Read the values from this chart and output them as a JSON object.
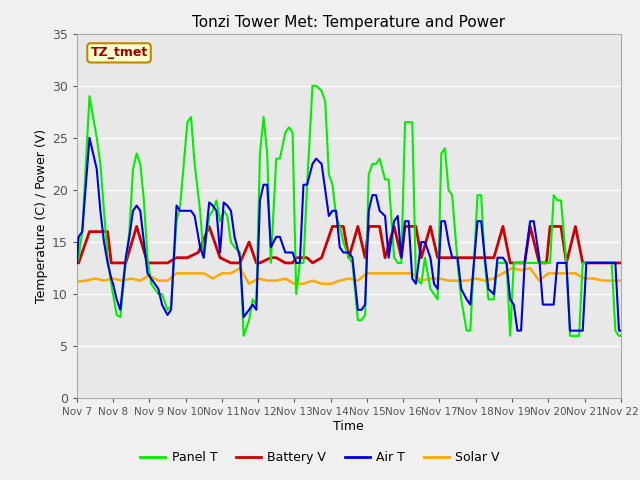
{
  "title": "Tonzi Tower Met: Temperature and Power",
  "xlabel": "Time",
  "ylabel": "Temperature (C) / Power (V)",
  "ylim": [
    0,
    35
  ],
  "yticks": [
    0,
    5,
    10,
    15,
    20,
    25,
    30,
    35
  ],
  "xtick_labels": [
    "Nov 7",
    "Nov 8",
    "Nov 9",
    "Nov 10",
    "Nov 11",
    "Nov 12",
    "Nov 13",
    "Nov 14",
    "Nov 15",
    "Nov 16",
    "Nov 17",
    "Nov 18",
    "Nov 19",
    "Nov 20",
    "Nov 21",
    "Nov 22"
  ],
  "label_box_text": "TZ_tmet",
  "legend_labels": [
    "Panel T",
    "Battery V",
    "Air T",
    "Solar V"
  ],
  "line_colors": [
    "#00ee00",
    "#cc0000",
    "#0000dd",
    "#ffaa00"
  ],
  "bg_color": "#e8e8e8",
  "fig_color": "#f0f0f0",
  "panel_t_x": [
    0.0,
    0.05,
    0.15,
    0.35,
    0.55,
    0.65,
    0.75,
    0.85,
    0.95,
    1.0,
    1.1,
    1.2,
    1.35,
    1.45,
    1.55,
    1.65,
    1.75,
    1.85,
    1.95,
    2.05,
    2.15,
    2.25,
    2.35,
    2.5,
    2.6,
    2.75,
    2.85,
    2.95,
    3.05,
    3.15,
    3.25,
    3.4,
    3.5,
    3.65,
    3.75,
    3.85,
    3.95,
    4.05,
    4.15,
    4.25,
    4.35,
    4.5,
    4.6,
    4.75,
    4.85,
    4.95,
    5.05,
    5.15,
    5.25,
    5.35,
    5.5,
    5.6,
    5.75,
    5.85,
    5.95,
    6.05,
    6.15,
    6.25,
    6.35,
    6.5,
    6.6,
    6.75,
    6.85,
    6.95,
    7.05,
    7.15,
    7.25,
    7.35,
    7.5,
    7.6,
    7.75,
    7.85,
    7.95,
    8.05,
    8.15,
    8.25,
    8.35,
    8.5,
    8.6,
    8.75,
    8.85,
    8.95,
    9.05,
    9.15,
    9.25,
    9.35,
    9.5,
    9.6,
    9.75,
    9.85,
    9.95,
    10.05,
    10.15,
    10.25,
    10.35,
    10.5,
    10.6,
    10.75,
    10.85,
    10.95,
    11.05,
    11.15,
    11.25,
    11.35,
    11.5,
    11.6,
    11.75,
    11.85,
    11.95,
    12.05,
    12.15,
    12.25,
    12.35,
    12.5,
    12.6,
    12.75,
    12.85,
    12.95,
    13.05,
    13.15,
    13.25,
    13.35,
    13.5,
    13.6,
    13.75,
    13.85,
    13.95,
    14.05,
    14.15,
    14.25,
    14.35,
    14.5,
    14.6,
    14.75,
    14.85,
    14.95,
    15.0
  ],
  "panel_t_y": [
    13.0,
    13.5,
    16.0,
    29.0,
    25.0,
    22.5,
    18.0,
    13.5,
    11.0,
    10.0,
    8.0,
    7.8,
    13.0,
    16.0,
    22.0,
    23.5,
    22.5,
    19.0,
    13.5,
    11.0,
    10.5,
    10.0,
    10.0,
    8.5,
    8.8,
    17.0,
    18.5,
    22.5,
    26.5,
    27.0,
    22.5,
    18.0,
    13.5,
    17.5,
    18.0,
    19.0,
    17.0,
    18.0,
    17.5,
    15.0,
    14.5,
    14.0,
    6.0,
    7.5,
    9.5,
    9.0,
    23.5,
    27.0,
    23.5,
    13.0,
    23.0,
    23.0,
    25.5,
    26.0,
    25.5,
    10.0,
    13.0,
    13.0,
    20.5,
    30.0,
    30.0,
    29.5,
    28.5,
    21.5,
    20.5,
    17.5,
    16.5,
    15.0,
    13.5,
    13.0,
    7.5,
    7.5,
    8.0,
    21.5,
    22.5,
    22.5,
    23.0,
    21.0,
    21.0,
    13.5,
    13.0,
    13.0,
    26.5,
    26.5,
    26.5,
    11.5,
    11.0,
    13.5,
    10.5,
    10.0,
    9.5,
    23.5,
    24.0,
    20.0,
    19.5,
    13.0,
    9.5,
    6.5,
    6.5,
    13.0,
    19.5,
    19.5,
    13.0,
    9.5,
    9.5,
    13.0,
    13.0,
    13.0,
    6.0,
    13.0,
    13.0,
    13.0,
    13.0,
    13.0,
    13.0,
    13.0,
    13.0,
    13.0,
    13.0,
    19.5,
    19.0,
    19.0,
    13.0,
    6.0,
    6.0,
    6.0,
    13.0,
    13.0,
    13.0,
    13.0,
    13.0,
    13.0,
    13.0,
    13.0,
    6.5,
    6.0,
    6.0
  ],
  "battery_v_x": [
    0.0,
    0.05,
    0.35,
    0.65,
    0.85,
    0.95,
    1.05,
    1.35,
    1.65,
    1.95,
    2.25,
    2.5,
    2.75,
    3.05,
    3.35,
    3.65,
    3.95,
    4.25,
    4.5,
    4.75,
    4.95,
    5.05,
    5.35,
    5.5,
    5.75,
    5.95,
    6.05,
    6.35,
    6.5,
    6.75,
    7.05,
    7.35,
    7.5,
    7.75,
    7.95,
    8.05,
    8.35,
    8.5,
    8.75,
    8.95,
    9.05,
    9.35,
    9.5,
    9.75,
    9.95,
    10.05,
    10.35,
    10.5,
    10.75,
    10.95,
    11.05,
    11.35,
    11.5,
    11.75,
    11.95,
    12.05,
    12.35,
    12.5,
    12.75,
    12.95,
    13.05,
    13.35,
    13.5,
    13.75,
    13.95,
    14.05,
    14.35,
    14.5,
    14.75,
    14.95,
    15.0
  ],
  "battery_v_y": [
    13.0,
    13.0,
    16.0,
    16.0,
    16.0,
    13.0,
    13.0,
    13.0,
    16.5,
    13.0,
    13.0,
    13.0,
    13.5,
    13.5,
    14.0,
    16.5,
    13.5,
    13.0,
    13.0,
    15.0,
    13.0,
    13.0,
    13.5,
    13.5,
    13.0,
    13.0,
    13.5,
    13.5,
    13.0,
    13.5,
    16.5,
    16.5,
    13.5,
    16.5,
    13.5,
    16.5,
    16.5,
    13.5,
    16.5,
    13.5,
    16.5,
    16.5,
    13.5,
    16.5,
    13.5,
    13.5,
    13.5,
    13.5,
    13.5,
    13.5,
    13.5,
    13.5,
    13.5,
    16.5,
    13.0,
    13.0,
    13.0,
    16.5,
    13.0,
    13.0,
    16.5,
    16.5,
    13.0,
    16.5,
    13.0,
    13.0,
    13.0,
    13.0,
    13.0,
    13.0,
    13.0
  ],
  "air_t_x": [
    0.0,
    0.05,
    0.15,
    0.35,
    0.55,
    0.65,
    0.75,
    0.85,
    0.95,
    1.0,
    1.1,
    1.2,
    1.35,
    1.45,
    1.55,
    1.65,
    1.75,
    1.85,
    1.95,
    2.05,
    2.15,
    2.25,
    2.35,
    2.5,
    2.6,
    2.75,
    2.85,
    2.95,
    3.05,
    3.15,
    3.25,
    3.4,
    3.5,
    3.65,
    3.75,
    3.85,
    3.95,
    4.05,
    4.15,
    4.25,
    4.35,
    4.5,
    4.6,
    4.75,
    4.85,
    4.95,
    5.05,
    5.15,
    5.25,
    5.35,
    5.5,
    5.6,
    5.75,
    5.85,
    5.95,
    6.05,
    6.15,
    6.25,
    6.35,
    6.5,
    6.6,
    6.75,
    6.85,
    6.95,
    7.05,
    7.15,
    7.25,
    7.35,
    7.5,
    7.6,
    7.75,
    7.85,
    7.95,
    8.05,
    8.15,
    8.25,
    8.35,
    8.5,
    8.6,
    8.75,
    8.85,
    8.95,
    9.05,
    9.15,
    9.25,
    9.35,
    9.5,
    9.6,
    9.75,
    9.85,
    9.95,
    10.05,
    10.15,
    10.25,
    10.35,
    10.5,
    10.6,
    10.75,
    10.85,
    10.95,
    11.05,
    11.15,
    11.25,
    11.35,
    11.5,
    11.6,
    11.75,
    11.85,
    11.95,
    12.05,
    12.15,
    12.25,
    12.35,
    12.5,
    12.6,
    12.75,
    12.85,
    12.95,
    13.05,
    13.15,
    13.25,
    13.35,
    13.5,
    13.6,
    13.75,
    13.85,
    13.95,
    14.05,
    14.15,
    14.25,
    14.35,
    14.5,
    14.6,
    14.75,
    14.85,
    14.95,
    15.0
  ],
  "air_t_y": [
    13.0,
    15.5,
    16.0,
    25.0,
    22.0,
    18.0,
    15.0,
    13.0,
    11.5,
    11.0,
    9.5,
    8.5,
    13.5,
    15.5,
    18.0,
    18.5,
    18.0,
    15.0,
    12.0,
    11.5,
    11.0,
    10.5,
    9.0,
    8.0,
    8.5,
    18.5,
    18.0,
    18.0,
    18.0,
    18.0,
    17.5,
    14.5,
    13.5,
    18.8,
    18.5,
    18.0,
    14.0,
    18.8,
    18.5,
    18.0,
    15.5,
    13.5,
    7.8,
    8.5,
    9.0,
    8.5,
    19.0,
    20.5,
    20.5,
    14.5,
    15.5,
    15.5,
    14.0,
    14.0,
    14.0,
    13.0,
    13.0,
    20.5,
    20.5,
    22.5,
    23.0,
    22.5,
    20.0,
    17.5,
    18.0,
    18.0,
    14.5,
    14.0,
    14.0,
    13.5,
    8.5,
    8.5,
    9.0,
    18.0,
    19.5,
    19.5,
    18.0,
    17.5,
    13.5,
    17.0,
    17.5,
    13.5,
    17.0,
    17.0,
    11.5,
    11.0,
    15.0,
    15.0,
    13.5,
    11.0,
    10.5,
    17.0,
    17.0,
    15.0,
    13.5,
    13.5,
    10.5,
    9.5,
    9.0,
    13.0,
    17.0,
    17.0,
    13.5,
    10.5,
    10.0,
    13.5,
    13.5,
    13.0,
    9.5,
    9.0,
    6.5,
    6.5,
    13.0,
    17.0,
    17.0,
    13.5,
    9.0,
    9.0,
    9.0,
    9.0,
    13.0,
    13.0,
    13.0,
    6.5,
    6.5,
    6.5,
    6.5,
    13.0,
    13.0,
    13.0,
    13.0,
    13.0,
    13.0,
    13.0,
    13.0,
    6.5,
    6.5
  ],
  "solar_v_x": [
    0.0,
    0.25,
    0.5,
    0.75,
    1.0,
    1.25,
    1.5,
    1.75,
    2.0,
    2.25,
    2.5,
    2.75,
    3.0,
    3.25,
    3.5,
    3.75,
    4.0,
    4.25,
    4.5,
    4.75,
    5.0,
    5.25,
    5.5,
    5.75,
    6.0,
    6.25,
    6.5,
    6.75,
    7.0,
    7.25,
    7.5,
    7.75,
    8.0,
    8.25,
    8.5,
    8.75,
    9.0,
    9.25,
    9.5,
    9.75,
    10.0,
    10.25,
    10.5,
    10.75,
    11.0,
    11.25,
    11.5,
    11.75,
    12.0,
    12.25,
    12.5,
    12.75,
    13.0,
    13.25,
    13.5,
    13.75,
    14.0,
    14.25,
    14.5,
    14.75,
    15.0
  ],
  "solar_v_y": [
    11.2,
    11.3,
    11.5,
    11.3,
    11.5,
    11.3,
    11.5,
    11.3,
    11.8,
    11.3,
    11.3,
    12.0,
    12.0,
    12.0,
    12.0,
    11.5,
    12.0,
    12.0,
    12.5,
    11.0,
    11.5,
    11.3,
    11.3,
    11.5,
    11.0,
    11.0,
    11.3,
    11.0,
    11.0,
    11.3,
    11.5,
    11.3,
    12.0,
    12.0,
    12.0,
    12.0,
    12.0,
    12.0,
    11.3,
    11.5,
    11.5,
    11.3,
    11.3,
    11.3,
    11.5,
    11.3,
    11.5,
    12.0,
    12.5,
    12.3,
    12.5,
    11.3,
    12.0,
    12.0,
    12.0,
    12.0,
    11.5,
    11.5,
    11.3,
    11.3,
    11.3
  ]
}
